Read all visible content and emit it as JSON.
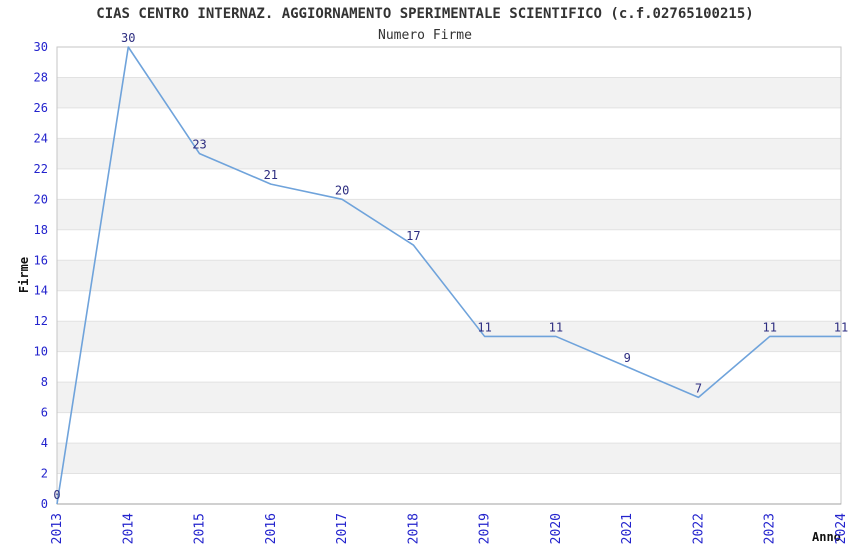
{
  "chart_data": {
    "type": "line",
    "title": "CIAS CENTRO INTERNAZ. AGGIORNAMENTO SPERIMENTALE SCIENTIFICO (c.f.02765100215)",
    "subtitle": "Numero Firme",
    "xlabel": "Anno",
    "ylabel": "Firme",
    "categories": [
      "2013",
      "2014",
      "2015",
      "2016",
      "2017",
      "2018",
      "2019",
      "2020",
      "2021",
      "2022",
      "2023",
      "2024"
    ],
    "series": [
      {
        "name": "Numero Firme",
        "values": [
          0,
          30,
          23,
          21,
          20,
          17,
          11,
          11,
          9,
          7,
          11,
          11
        ]
      }
    ],
    "point_labels": [
      "0",
      "30",
      "23",
      "21",
      "20",
      "17",
      "11",
      "11",
      "9",
      "7",
      "11",
      "11"
    ],
    "ylim": [
      0,
      30
    ],
    "yticks": [
      0,
      2,
      4,
      6,
      8,
      10,
      12,
      14,
      16,
      18,
      20,
      22,
      24,
      26,
      28,
      30
    ],
    "grid": "horizontal",
    "alternating_bands": true,
    "legend": "none",
    "colors": {
      "line": "#6fa3db",
      "tick_label": "#2323cd",
      "point_label": "#2d2d80",
      "band": "#f2f2f2",
      "grid_line": "#e2e2e2",
      "plot_border": "#c6c6c6",
      "axis_line": "#a0a0a0",
      "heading_text": "#333333",
      "background": "#ffffff"
    }
  }
}
